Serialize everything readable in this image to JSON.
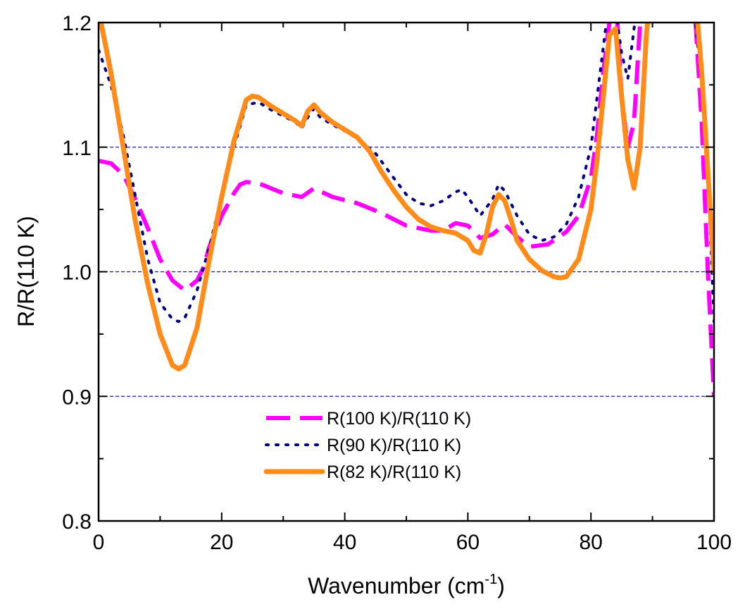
{
  "chart_data": {
    "type": "line",
    "title": "",
    "xlabel": "Wavenumber (cm",
    "xlabel_sup": "-1",
    "xlabel_close": ")",
    "ylabel": "R/R(110 K)",
    "xlim": [
      0,
      100
    ],
    "ylim": [
      0.8,
      1.2
    ],
    "x_ticks": [
      0,
      20,
      40,
      60,
      80,
      100
    ],
    "x_tick_labels": [
      "0",
      "20",
      "40",
      "60",
      "80",
      "100"
    ],
    "y_ticks": [
      0.8,
      0.9,
      1.0,
      1.1,
      1.2
    ],
    "y_tick_labels": [
      "0.8",
      "0.9",
      "1.0",
      "1.1",
      "1.2"
    ],
    "reference_lines": [
      0.9,
      1.0,
      1.1
    ],
    "legend_position": "bottom-center",
    "series": [
      {
        "name": "R(100 K)/R(110 K)",
        "color": "#ff00ff",
        "style": "dashed",
        "points": [
          [
            0,
            1.089
          ],
          [
            2,
            1.087
          ],
          [
            4,
            1.078
          ],
          [
            6,
            1.058
          ],
          [
            8,
            1.035
          ],
          [
            10,
            1.01
          ],
          [
            12,
            0.993
          ],
          [
            14,
            0.985
          ],
          [
            16,
            0.993
          ],
          [
            17,
            1.003
          ],
          [
            18,
            1.02
          ],
          [
            20,
            1.045
          ],
          [
            22,
            1.063
          ],
          [
            23,
            1.07
          ],
          [
            24,
            1.072
          ],
          [
            26,
            1.071
          ],
          [
            28,
            1.067
          ],
          [
            30,
            1.063
          ],
          [
            33,
            1.06
          ],
          [
            35,
            1.067
          ],
          [
            38,
            1.06
          ],
          [
            42,
            1.055
          ],
          [
            46,
            1.047
          ],
          [
            50,
            1.037
          ],
          [
            54,
            1.033
          ],
          [
            56,
            1.033
          ],
          [
            58,
            1.039
          ],
          [
            60,
            1.037
          ],
          [
            62,
            1.027
          ],
          [
            64,
            1.03
          ],
          [
            66,
            1.038
          ],
          [
            68,
            1.028
          ],
          [
            70,
            1.02
          ],
          [
            73,
            1.022
          ],
          [
            76,
            1.032
          ],
          [
            78,
            1.045
          ],
          [
            80,
            1.075
          ],
          [
            81,
            1.11
          ],
          [
            82,
            1.16
          ],
          [
            83,
            1.2
          ],
          [
            84,
            1.225
          ],
          [
            85,
            1.14
          ],
          [
            86,
            1.1
          ],
          [
            87,
            1.12
          ],
          [
            88,
            1.2
          ],
          [
            89,
            1.24
          ],
          [
            96,
            1.24
          ],
          [
            97,
            1.2
          ],
          [
            98,
            1.12
          ],
          [
            99,
            1.0
          ],
          [
            99.5,
            0.95
          ],
          [
            100,
            0.9
          ]
        ]
      },
      {
        "name": "R(90 K)/R(110 K)",
        "color": "#000080",
        "style": "dotted",
        "points": [
          [
            0,
            1.178
          ],
          [
            2,
            1.15
          ],
          [
            4,
            1.11
          ],
          [
            6,
            1.06
          ],
          [
            8,
            1.01
          ],
          [
            10,
            0.975
          ],
          [
            12,
            0.962
          ],
          [
            13,
            0.96
          ],
          [
            14,
            0.963
          ],
          [
            16,
            0.985
          ],
          [
            18,
            1.02
          ],
          [
            20,
            1.06
          ],
          [
            22,
            1.1
          ],
          [
            24,
            1.134
          ],
          [
            26,
            1.136
          ],
          [
            28,
            1.13
          ],
          [
            30,
            1.125
          ],
          [
            32,
            1.12
          ],
          [
            33,
            1.115
          ],
          [
            34,
            1.124
          ],
          [
            35,
            1.131
          ],
          [
            36,
            1.124
          ],
          [
            38,
            1.118
          ],
          [
            40,
            1.113
          ],
          [
            42,
            1.107
          ],
          [
            45,
            1.095
          ],
          [
            48,
            1.075
          ],
          [
            50,
            1.062
          ],
          [
            52,
            1.055
          ],
          [
            54,
            1.053
          ],
          [
            56,
            1.057
          ],
          [
            58,
            1.064
          ],
          [
            59,
            1.066
          ],
          [
            60,
            1.06
          ],
          [
            62,
            1.045
          ],
          [
            64,
            1.058
          ],
          [
            65,
            1.07
          ],
          [
            66,
            1.065
          ],
          [
            68,
            1.045
          ],
          [
            70,
            1.03
          ],
          [
            72,
            1.025
          ],
          [
            74,
            1.028
          ],
          [
            76,
            1.038
          ],
          [
            78,
            1.06
          ],
          [
            80,
            1.1
          ],
          [
            81,
            1.14
          ],
          [
            82,
            1.18
          ],
          [
            83,
            1.22
          ],
          [
            84,
            1.21
          ],
          [
            85,
            1.175
          ],
          [
            86,
            1.155
          ],
          [
            87,
            1.195
          ],
          [
            88,
            1.23
          ],
          [
            96,
            1.24
          ],
          [
            97,
            1.2
          ],
          [
            98,
            1.15
          ],
          [
            99,
            1.08
          ],
          [
            100,
            0.96
          ]
        ]
      },
      {
        "name": "R(82 K)/R(110 K)",
        "color": "#ff8c1a",
        "style": "solid",
        "points": [
          [
            0,
            1.21
          ],
          [
            2,
            1.16
          ],
          [
            4,
            1.1
          ],
          [
            6,
            1.04
          ],
          [
            8,
            0.99
          ],
          [
            10,
            0.95
          ],
          [
            12,
            0.925
          ],
          [
            13,
            0.922
          ],
          [
            14,
            0.925
          ],
          [
            16,
            0.955
          ],
          [
            18,
            1.01
          ],
          [
            20,
            1.06
          ],
          [
            22,
            1.105
          ],
          [
            24,
            1.138
          ],
          [
            25,
            1.141
          ],
          [
            26,
            1.14
          ],
          [
            28,
            1.133
          ],
          [
            30,
            1.127
          ],
          [
            32,
            1.121
          ],
          [
            33,
            1.117
          ],
          [
            34,
            1.129
          ],
          [
            35,
            1.134
          ],
          [
            36,
            1.128
          ],
          [
            38,
            1.12
          ],
          [
            40,
            1.114
          ],
          [
            42,
            1.108
          ],
          [
            44,
            1.097
          ],
          [
            46,
            1.08
          ],
          [
            48,
            1.065
          ],
          [
            50,
            1.052
          ],
          [
            52,
            1.042
          ],
          [
            54,
            1.036
          ],
          [
            56,
            1.033
          ],
          [
            58,
            1.031
          ],
          [
            60,
            1.025
          ],
          [
            61,
            1.017
          ],
          [
            62,
            1.015
          ],
          [
            63,
            1.03
          ],
          [
            64,
            1.052
          ],
          [
            65,
            1.062
          ],
          [
            66,
            1.057
          ],
          [
            67,
            1.042
          ],
          [
            68,
            1.025
          ],
          [
            70,
            1.01
          ],
          [
            72,
            1.001
          ],
          [
            74,
            0.996
          ],
          [
            75,
            0.995
          ],
          [
            76,
            0.996
          ],
          [
            78,
            1.01
          ],
          [
            80,
            1.05
          ],
          [
            81,
            1.09
          ],
          [
            82,
            1.14
          ],
          [
            83,
            1.19
          ],
          [
            84,
            1.195
          ],
          [
            85,
            1.14
          ],
          [
            86,
            1.09
          ],
          [
            87,
            1.067
          ],
          [
            88,
            1.1
          ],
          [
            89,
            1.19
          ],
          [
            90,
            1.24
          ],
          [
            96,
            1.24
          ],
          [
            97,
            1.22
          ],
          [
            98,
            1.16
          ],
          [
            99,
            1.08
          ],
          [
            100,
            1.0
          ]
        ]
      }
    ]
  }
}
